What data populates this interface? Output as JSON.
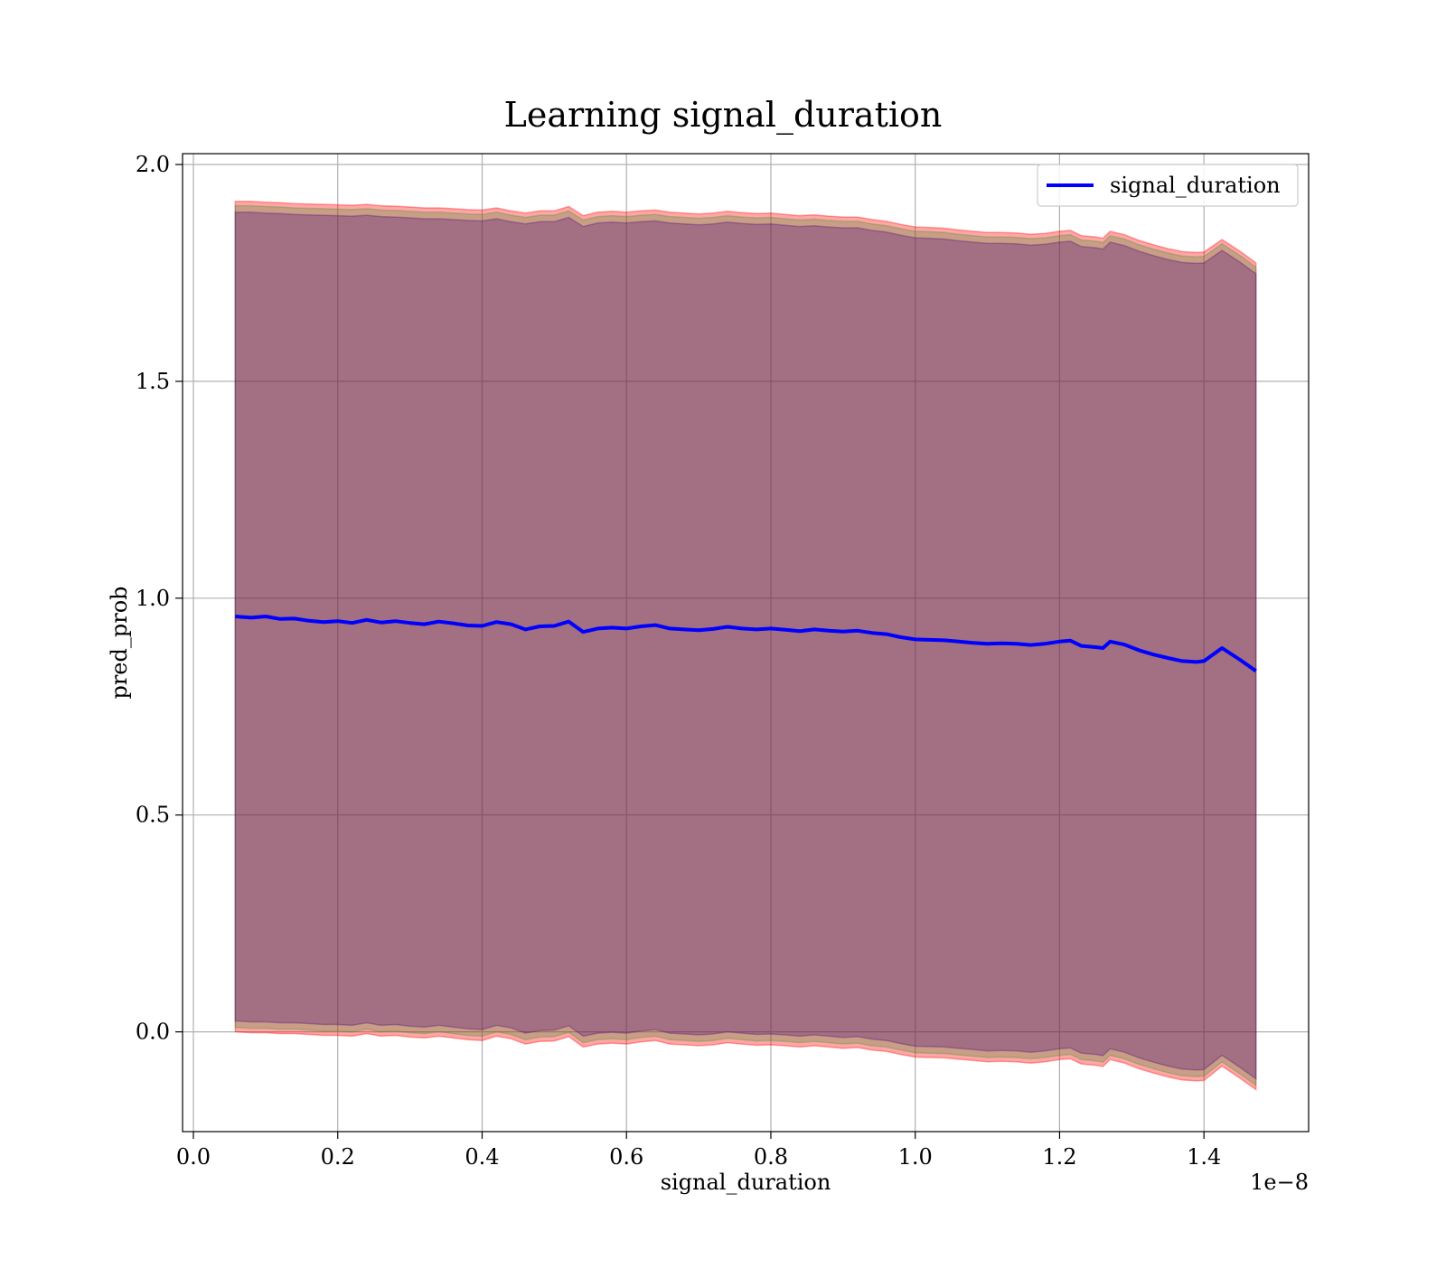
{
  "chart_data": {
    "type": "line",
    "title": "Learning signal_duration",
    "xlabel": "signal_duration",
    "ylabel": "pred_prob",
    "x_offset_label": "1e−8",
    "xlim": [
      -0.015,
      1.545
    ],
    "ylim": [
      -0.23,
      2.025
    ],
    "x_ticks": [
      0.0,
      0.2,
      0.4,
      0.6,
      0.8,
      1.0,
      1.2,
      1.4
    ],
    "x_tick_labels": [
      "0.0",
      "0.2",
      "0.4",
      "0.6",
      "0.8",
      "1.0",
      "1.2",
      "1.4"
    ],
    "y_ticks": [
      0.0,
      0.5,
      1.0,
      1.5,
      2.0
    ],
    "y_tick_labels": [
      "0.0",
      "0.5",
      "1.0",
      "1.5",
      "2.0"
    ],
    "grid": true,
    "legend_position": "top-right",
    "series": [
      {
        "name": "signal_duration",
        "color": "#0000ff",
        "x": [
          0.058,
          0.08,
          0.1,
          0.12,
          0.14,
          0.16,
          0.18,
          0.2,
          0.22,
          0.24,
          0.26,
          0.28,
          0.3,
          0.32,
          0.34,
          0.36,
          0.38,
          0.4,
          0.42,
          0.44,
          0.46,
          0.48,
          0.5,
          0.52,
          0.54,
          0.56,
          0.58,
          0.6,
          0.62,
          0.64,
          0.66,
          0.68,
          0.7,
          0.72,
          0.74,
          0.76,
          0.78,
          0.8,
          0.82,
          0.84,
          0.86,
          0.88,
          0.9,
          0.92,
          0.94,
          0.96,
          0.98,
          1.0,
          1.02,
          1.04,
          1.06,
          1.08,
          1.1,
          1.12,
          1.14,
          1.16,
          1.18,
          1.2,
          1.215,
          1.23,
          1.25,
          1.26,
          1.27,
          1.29,
          1.31,
          1.33,
          1.35,
          1.37,
          1.39,
          1.4,
          1.425,
          1.45,
          1.472
        ],
        "y": [
          0.958,
          0.955,
          0.958,
          0.952,
          0.953,
          0.948,
          0.945,
          0.947,
          0.943,
          0.95,
          0.944,
          0.947,
          0.943,
          0.94,
          0.946,
          0.942,
          0.937,
          0.936,
          0.945,
          0.94,
          0.928,
          0.935,
          0.936,
          0.946,
          0.922,
          0.93,
          0.932,
          0.93,
          0.935,
          0.938,
          0.93,
          0.928,
          0.926,
          0.929,
          0.934,
          0.93,
          0.928,
          0.93,
          0.927,
          0.924,
          0.928,
          0.925,
          0.923,
          0.925,
          0.92,
          0.917,
          0.91,
          0.905,
          0.904,
          0.903,
          0.9,
          0.897,
          0.895,
          0.896,
          0.895,
          0.892,
          0.895,
          0.9,
          0.902,
          0.89,
          0.887,
          0.885,
          0.9,
          0.893,
          0.88,
          0.87,
          0.862,
          0.855,
          0.853,
          0.855,
          0.885,
          0.858,
          0.832
        ]
      }
    ],
    "bands": [
      {
        "color": "#ff0000",
        "alpha": 0.35,
        "upper": [
          1.915,
          1.915,
          1.913,
          1.912,
          1.91,
          1.909,
          1.908,
          1.907,
          1.906,
          1.908,
          1.905,
          1.904,
          1.902,
          1.9,
          1.9,
          1.898,
          1.896,
          1.895,
          1.9,
          1.893,
          1.888,
          1.893,
          1.893,
          1.903,
          1.882,
          1.89,
          1.892,
          1.89,
          1.893,
          1.895,
          1.89,
          1.888,
          1.886,
          1.888,
          1.892,
          1.889,
          1.887,
          1.888,
          1.885,
          1.882,
          1.884,
          1.881,
          1.879,
          1.879,
          1.873,
          1.869,
          1.862,
          1.856,
          1.855,
          1.853,
          1.849,
          1.846,
          1.843,
          1.843,
          1.842,
          1.839,
          1.841,
          1.846,
          1.848,
          1.836,
          1.833,
          1.83,
          1.846,
          1.838,
          1.825,
          1.815,
          1.806,
          1.799,
          1.797,
          1.798,
          1.827,
          1.8,
          1.773
        ],
        "lower": [
          0.0,
          -0.002,
          -0.002,
          -0.004,
          -0.004,
          -0.006,
          -0.008,
          -0.008,
          -0.01,
          -0.004,
          -0.01,
          -0.008,
          -0.012,
          -0.014,
          -0.01,
          -0.014,
          -0.018,
          -0.02,
          -0.01,
          -0.016,
          -0.028,
          -0.022,
          -0.021,
          -0.011,
          -0.035,
          -0.028,
          -0.026,
          -0.028,
          -0.023,
          -0.02,
          -0.028,
          -0.03,
          -0.032,
          -0.03,
          -0.025,
          -0.028,
          -0.031,
          -0.03,
          -0.032,
          -0.035,
          -0.032,
          -0.035,
          -0.038,
          -0.036,
          -0.042,
          -0.045,
          -0.052,
          -0.058,
          -0.059,
          -0.06,
          -0.063,
          -0.066,
          -0.069,
          -0.068,
          -0.069,
          -0.072,
          -0.069,
          -0.064,
          -0.062,
          -0.074,
          -0.077,
          -0.08,
          -0.064,
          -0.072,
          -0.085,
          -0.095,
          -0.104,
          -0.111,
          -0.113,
          -0.112,
          -0.079,
          -0.107,
          -0.133
        ]
      },
      {
        "color": "#228b22",
        "alpha": 0.25,
        "upper": [
          1.905,
          1.905,
          1.903,
          1.902,
          1.9,
          1.899,
          1.898,
          1.897,
          1.896,
          1.898,
          1.895,
          1.894,
          1.892,
          1.89,
          1.89,
          1.888,
          1.886,
          1.885,
          1.89,
          1.883,
          1.878,
          1.883,
          1.883,
          1.893,
          1.872,
          1.88,
          1.882,
          1.88,
          1.883,
          1.885,
          1.88,
          1.878,
          1.876,
          1.878,
          1.882,
          1.879,
          1.877,
          1.878,
          1.875,
          1.872,
          1.874,
          1.871,
          1.869,
          1.869,
          1.863,
          1.859,
          1.852,
          1.846,
          1.845,
          1.843,
          1.839,
          1.836,
          1.833,
          1.833,
          1.832,
          1.829,
          1.831,
          1.836,
          1.838,
          1.826,
          1.823,
          1.82,
          1.836,
          1.828,
          1.815,
          1.805,
          1.796,
          1.789,
          1.787,
          1.788,
          1.817,
          1.79,
          1.763
        ],
        "lower": [
          0.01,
          0.008,
          0.008,
          0.006,
          0.006,
          0.004,
          0.002,
          0.002,
          0.0,
          0.006,
          0.0,
          0.002,
          -0.002,
          -0.004,
          0.0,
          -0.004,
          -0.008,
          -0.01,
          0.0,
          -0.006,
          -0.018,
          -0.012,
          -0.011,
          -0.001,
          -0.025,
          -0.018,
          -0.016,
          -0.018,
          -0.013,
          -0.01,
          -0.018,
          -0.02,
          -0.022,
          -0.02,
          -0.015,
          -0.018,
          -0.021,
          -0.02,
          -0.022,
          -0.025,
          -0.022,
          -0.025,
          -0.028,
          -0.026,
          -0.032,
          -0.035,
          -0.042,
          -0.048,
          -0.049,
          -0.05,
          -0.053,
          -0.056,
          -0.059,
          -0.058,
          -0.059,
          -0.062,
          -0.059,
          -0.054,
          -0.052,
          -0.064,
          -0.067,
          -0.07,
          -0.054,
          -0.062,
          -0.075,
          -0.085,
          -0.094,
          -0.101,
          -0.103,
          -0.102,
          -0.069,
          -0.097,
          -0.123
        ]
      },
      {
        "color": "#4b0082",
        "alpha": 0.3,
        "upper": [
          1.89,
          1.89,
          1.888,
          1.887,
          1.885,
          1.884,
          1.883,
          1.882,
          1.881,
          1.883,
          1.88,
          1.879,
          1.877,
          1.875,
          1.875,
          1.873,
          1.871,
          1.87,
          1.875,
          1.868,
          1.863,
          1.868,
          1.868,
          1.878,
          1.857,
          1.865,
          1.867,
          1.865,
          1.868,
          1.87,
          1.865,
          1.863,
          1.861,
          1.863,
          1.867,
          1.864,
          1.862,
          1.863,
          1.86,
          1.857,
          1.859,
          1.856,
          1.854,
          1.854,
          1.848,
          1.844,
          1.837,
          1.831,
          1.83,
          1.828,
          1.824,
          1.821,
          1.818,
          1.818,
          1.817,
          1.814,
          1.816,
          1.821,
          1.823,
          1.811,
          1.808,
          1.805,
          1.821,
          1.813,
          1.8,
          1.79,
          1.781,
          1.774,
          1.772,
          1.773,
          1.802,
          1.775,
          1.748
        ],
        "lower": [
          0.025,
          0.023,
          0.023,
          0.021,
          0.021,
          0.019,
          0.017,
          0.017,
          0.015,
          0.021,
          0.015,
          0.017,
          0.013,
          0.011,
          0.015,
          0.011,
          0.007,
          0.005,
          0.015,
          0.009,
          -0.003,
          0.003,
          0.004,
          0.014,
          -0.01,
          -0.003,
          -0.001,
          -0.003,
          0.002,
          0.005,
          -0.003,
          -0.005,
          -0.007,
          -0.005,
          0.0,
          -0.003,
          -0.006,
          -0.005,
          -0.007,
          -0.01,
          -0.007,
          -0.01,
          -0.013,
          -0.011,
          -0.017,
          -0.02,
          -0.027,
          -0.033,
          -0.034,
          -0.035,
          -0.038,
          -0.041,
          -0.044,
          -0.043,
          -0.044,
          -0.047,
          -0.044,
          -0.039,
          -0.037,
          -0.049,
          -0.052,
          -0.055,
          -0.039,
          -0.047,
          -0.06,
          -0.07,
          -0.079,
          -0.086,
          -0.088,
          -0.087,
          -0.054,
          -0.082,
          -0.108
        ]
      }
    ]
  }
}
